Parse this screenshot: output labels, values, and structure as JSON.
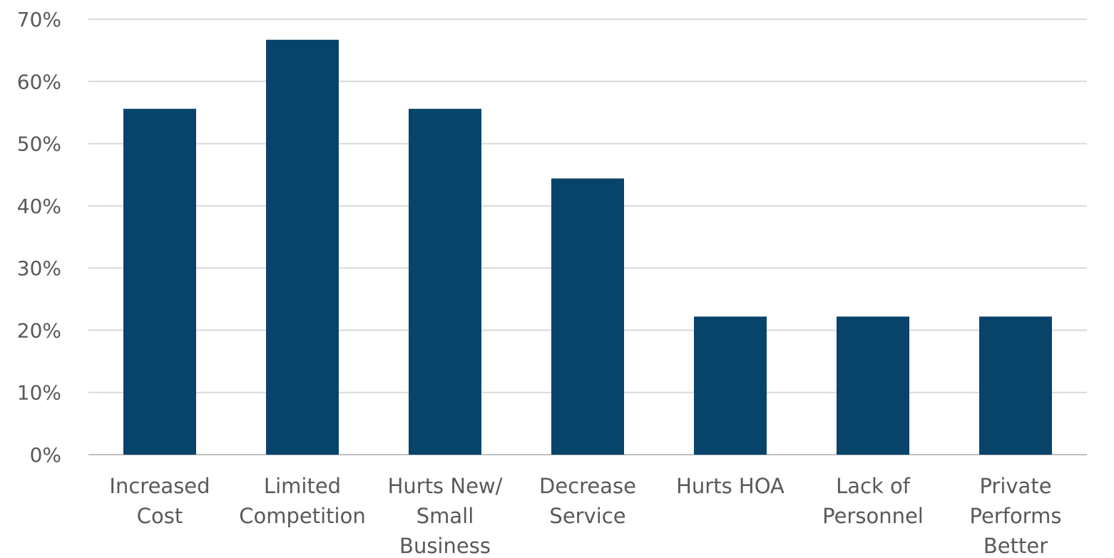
{
  "chart_data": {
    "type": "bar",
    "title": "",
    "xlabel": "",
    "ylabel": "",
    "categories": [
      [
        "Increased",
        "Cost"
      ],
      [
        "Limited",
        "Competition"
      ],
      [
        "Hurts New/",
        "Small",
        "Business"
      ],
      [
        "Decrease",
        "Service"
      ],
      [
        "Hurts HOA"
      ],
      [
        "Lack of",
        "Personnel"
      ],
      [
        "Private",
        "Performs",
        "Better"
      ]
    ],
    "values": [
      55.6,
      66.7,
      55.6,
      44.4,
      22.2,
      22.2,
      22.2
    ],
    "ylim": [
      0,
      70
    ],
    "yticks": [
      0,
      10,
      20,
      30,
      40,
      50,
      60,
      70
    ],
    "ytick_labels": [
      "0%",
      "10%",
      "20%",
      "30%",
      "40%",
      "50%",
      "60%",
      "70%"
    ],
    "grid": true,
    "legend": "none",
    "bar_color": "#08436b"
  }
}
